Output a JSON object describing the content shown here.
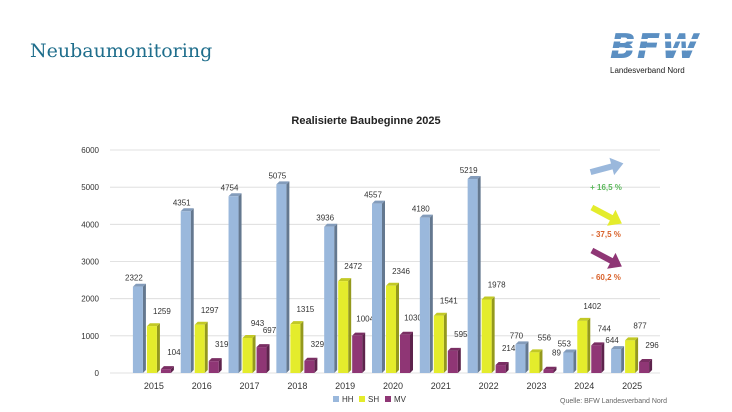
{
  "header": {
    "title": "Neubaumonitoring",
    "logo_text": "BFW",
    "logo_subtitle": "Landesverband Nord"
  },
  "colors": {
    "HH": "#9ab8dc",
    "SH": "#e4ec2c",
    "MV": "#8f3675",
    "grid": "#d9d9d9",
    "logo": "#5b8fc2",
    "trend_positive": "#5cb85c",
    "trend_negative": "#d9622b"
  },
  "chart_data": {
    "type": "bar",
    "title": "Realisierte Baubeginne 2025",
    "categories": [
      "2015",
      "2016",
      "2017",
      "2018",
      "2019",
      "2020",
      "2021",
      "2022",
      "2023",
      "2024",
      "2025"
    ],
    "series": [
      {
        "name": "HH",
        "values": [
          2322,
          4351,
          4754,
          5075,
          3936,
          4557,
          4180,
          5219,
          770,
          553,
          644
        ]
      },
      {
        "name": "SH",
        "values": [
          1259,
          1297,
          943,
          1315,
          2472,
          2346,
          1541,
          1978,
          556,
          1402,
          877
        ]
      },
      {
        "name": "MV",
        "values": [
          104,
          319,
          697,
          329,
          1004,
          1030,
          595,
          214,
          89,
          744,
          296
        ]
      }
    ],
    "ylim": [
      0,
      6000
    ],
    "yticks": [
      0,
      1000,
      2000,
      3000,
      4000,
      5000,
      6000
    ],
    "grid": true,
    "legend": "bottom",
    "trends": [
      {
        "series": "HH",
        "direction": "up",
        "label": "+ 16,5 %"
      },
      {
        "series": "SH",
        "direction": "down",
        "label": "- 37,5 %"
      },
      {
        "series": "MV",
        "direction": "down",
        "label": "- 60,2 %"
      }
    ]
  },
  "footer": {
    "source": "Quelle: BFW Landesverband Nord"
  }
}
